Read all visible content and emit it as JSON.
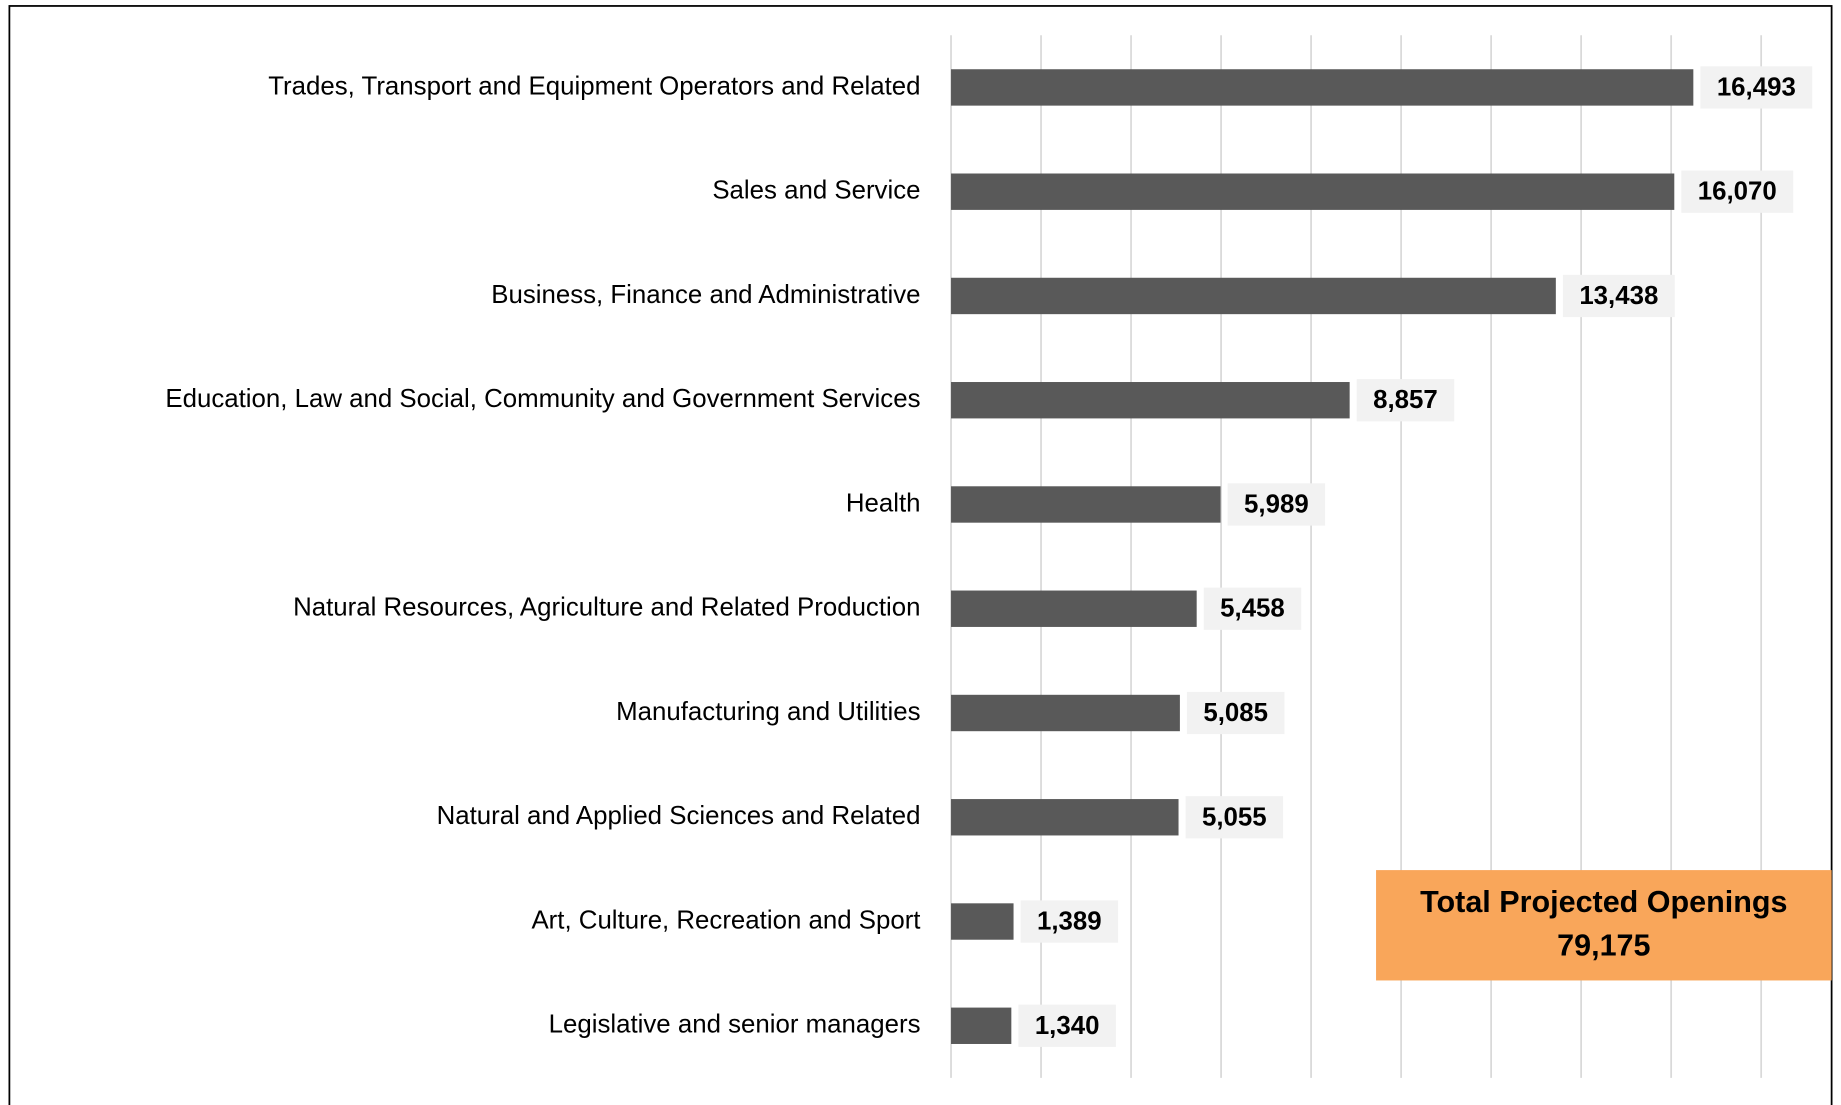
{
  "chart_data": {
    "type": "bar",
    "orientation": "horizontal",
    "categories": [
      "Trades, Transport and Equipment Operators and Related",
      "Sales and Service",
      "Business, Finance and Administrative",
      "Education, Law and Social, Community and Government Services",
      "Health",
      "Natural Resources, Agriculture and Related Production",
      "Manufacturing and Utilities",
      "Natural and Applied Sciences and Related",
      "Art, Culture, Recreation and Sport",
      "Legislative and senior managers"
    ],
    "values": [
      16493,
      16070,
      13438,
      8857,
      5989,
      5458,
      5085,
      5055,
      1389,
      1340
    ],
    "value_labels": [
      "16,493",
      "16,070",
      "13,438",
      "8,857",
      "5,989",
      "5,458",
      "5,085",
      "5,055",
      "1,389",
      "1,340"
    ],
    "color": "#595959",
    "xlim": [
      0,
      18000
    ],
    "xticks": [
      0,
      2000,
      4000,
      6000,
      8000,
      10000,
      12000,
      14000,
      16000,
      18000
    ],
    "grid": true,
    "annotation": [
      "Total Projected Openings",
      "79,175"
    ]
  }
}
